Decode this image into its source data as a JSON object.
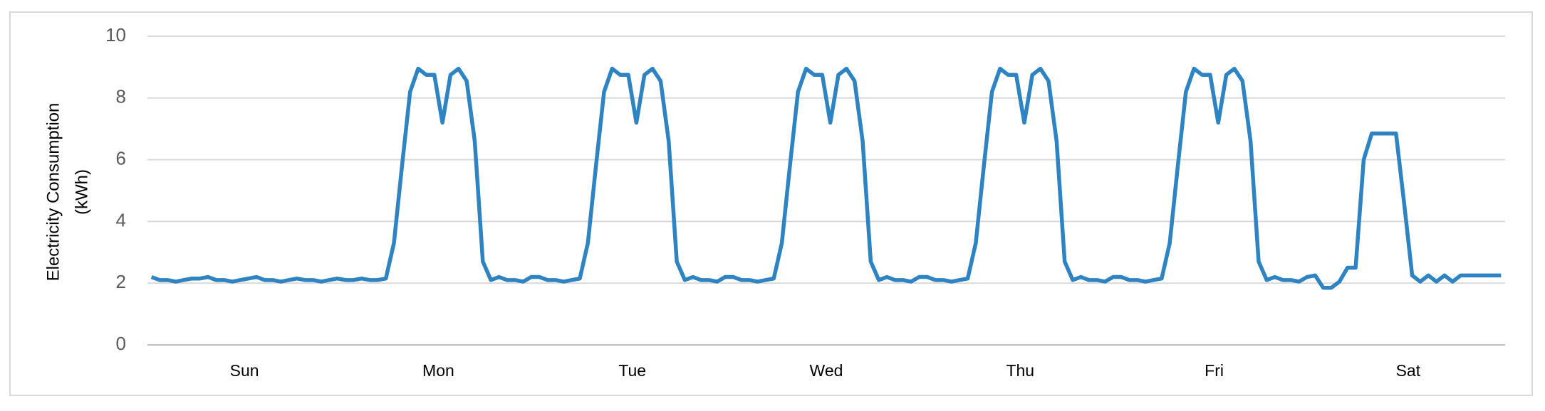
{
  "chart_data": {
    "type": "line",
    "y_label": [
      "Electricity Consumption",
      "(kWh)"
    ],
    "categories": [
      null,
      null,
      null,
      null,
      null,
      null,
      null,
      null,
      null,
      null,
      null,
      null,
      "Sun",
      null,
      null,
      null,
      null,
      null,
      null,
      null,
      null,
      null,
      null,
      null,
      null,
      null,
      null,
      null,
      null,
      null,
      null,
      null,
      null,
      null,
      null,
      null,
      "Mon",
      null,
      null,
      null,
      null,
      null,
      null,
      null,
      null,
      null,
      null,
      null,
      null,
      null,
      null,
      null,
      null,
      null,
      null,
      null,
      null,
      null,
      null,
      null,
      "Tue",
      null,
      null,
      null,
      null,
      null,
      null,
      null,
      null,
      null,
      null,
      null,
      null,
      null,
      null,
      null,
      null,
      null,
      null,
      null,
      null,
      null,
      null,
      null,
      "Wed",
      null,
      null,
      null,
      null,
      null,
      null,
      null,
      null,
      null,
      null,
      null,
      null,
      null,
      null,
      null,
      null,
      null,
      null,
      null,
      null,
      null,
      null,
      null,
      "Thu",
      null,
      null,
      null,
      null,
      null,
      null,
      null,
      null,
      null,
      null,
      null,
      null,
      null,
      null,
      null,
      null,
      null,
      null,
      null,
      null,
      null,
      null,
      null,
      "Fri",
      null,
      null,
      null,
      null,
      null,
      null,
      null,
      null,
      null,
      null,
      null,
      null,
      null,
      null,
      null,
      null,
      null,
      null,
      null,
      null,
      null,
      null,
      null,
      "Sat",
      null,
      null,
      null,
      null,
      null,
      null,
      null,
      null,
      null,
      null,
      null
    ],
    "series": [
      {
        "color": "#2e83c3",
        "values": [
          2.2,
          2.1,
          2.1,
          2.05,
          2.1,
          2.15,
          2.15,
          2.2,
          2.1,
          2.1,
          2.05,
          2.1,
          2.15,
          2.2,
          2.1,
          2.1,
          2.05,
          2.1,
          2.15,
          2.1,
          2.1,
          2.05,
          2.1,
          2.15,
          2.1,
          2.1,
          2.15,
          2.1,
          2.1,
          2.15,
          3.3,
          5.8,
          8.2,
          8.95,
          8.75,
          8.75,
          7.2,
          8.75,
          8.95,
          8.55,
          6.6,
          2.7,
          2.1,
          2.2,
          2.1,
          2.1,
          2.05,
          2.2,
          2.2,
          2.1,
          2.1,
          2.05,
          2.1,
          2.15,
          3.3,
          5.8,
          8.2,
          8.95,
          8.75,
          8.75,
          7.2,
          8.75,
          8.95,
          8.55,
          6.6,
          2.7,
          2.1,
          2.2,
          2.1,
          2.1,
          2.05,
          2.2,
          2.2,
          2.1,
          2.1,
          2.05,
          2.1,
          2.15,
          3.3,
          5.8,
          8.2,
          8.95,
          8.75,
          8.75,
          7.2,
          8.75,
          8.95,
          8.55,
          6.6,
          2.7,
          2.1,
          2.2,
          2.1,
          2.1,
          2.05,
          2.2,
          2.2,
          2.1,
          2.1,
          2.05,
          2.1,
          2.15,
          3.3,
          5.8,
          8.2,
          8.95,
          8.75,
          8.75,
          7.2,
          8.75,
          8.95,
          8.55,
          6.6,
          2.7,
          2.1,
          2.2,
          2.1,
          2.1,
          2.05,
          2.2,
          2.2,
          2.1,
          2.1,
          2.05,
          2.1,
          2.15,
          3.3,
          5.8,
          8.2,
          8.95,
          8.75,
          8.75,
          7.2,
          8.75,
          8.95,
          8.55,
          6.6,
          2.7,
          2.1,
          2.2,
          2.1,
          2.1,
          2.05,
          2.2,
          2.25,
          1.85,
          1.85,
          2.05,
          2.5,
          2.5,
          6.0,
          6.85,
          6.85,
          6.85,
          6.85,
          4.6,
          2.25,
          2.05,
          2.25,
          2.05,
          2.25,
          2.05,
          2.25,
          2.25,
          2.25,
          2.25,
          2.25,
          2.25
        ]
      }
    ],
    "ylim": [
      0,
      10
    ],
    "yticks": [
      0,
      2,
      4,
      6,
      8,
      10
    ],
    "grid": true
  }
}
